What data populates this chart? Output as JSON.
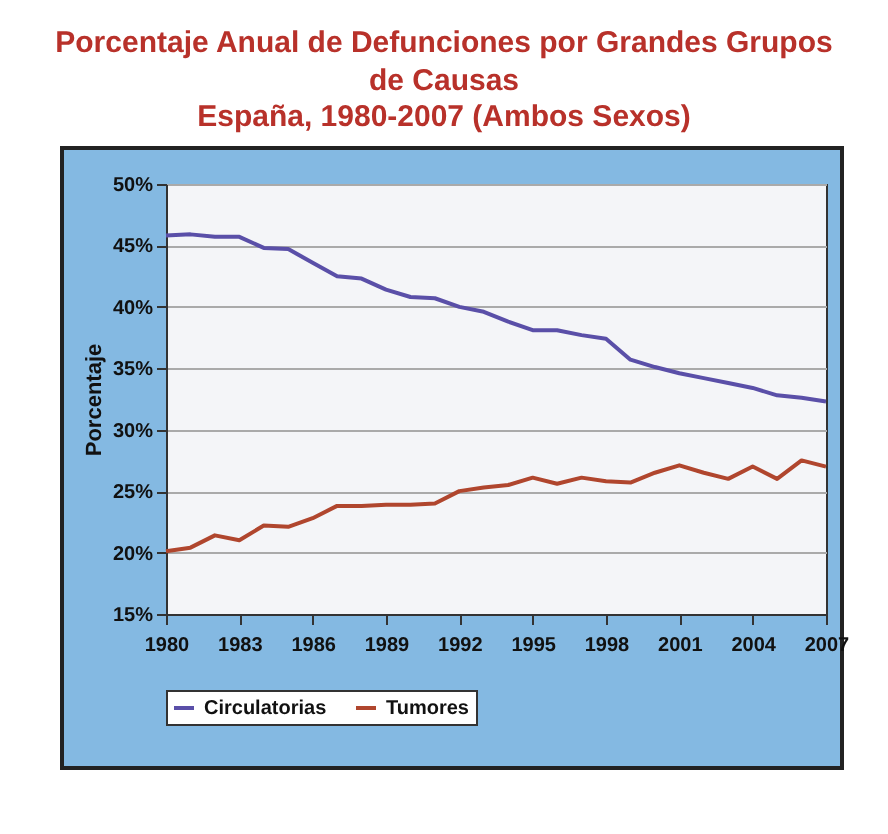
{
  "chart_data": {
    "type": "line",
    "title": "Porcentaje Anual de Defunciones por Grandes Grupos de Causas",
    "subtitle": "España, 1980-2007 (Ambos Sexos)",
    "ylabel": "Porcentaje",
    "x": [
      1980,
      1981,
      1982,
      1983,
      1984,
      1985,
      1986,
      1987,
      1988,
      1989,
      1990,
      1991,
      1992,
      1993,
      1994,
      1995,
      1996,
      1997,
      1998,
      1999,
      2000,
      2001,
      2002,
      2003,
      2004,
      2005,
      2006,
      2007
    ],
    "series": [
      {
        "name": "Circulatorias",
        "color": "#5a4fa8",
        "values": [
          45.8,
          45.9,
          45.7,
          45.7,
          44.8,
          44.7,
          43.6,
          42.5,
          42.3,
          41.4,
          40.8,
          40.7,
          40.0,
          39.6,
          38.8,
          38.1,
          38.1,
          37.7,
          37.4,
          35.7,
          35.1,
          34.6,
          34.2,
          33.8,
          33.4,
          32.8,
          32.6,
          32.3
        ]
      },
      {
        "name": "Tumores",
        "color": "#b0462e",
        "values": [
          20.1,
          20.4,
          21.4,
          21.0,
          22.2,
          22.1,
          22.8,
          23.8,
          23.8,
          23.9,
          23.9,
          24.0,
          25.0,
          25.3,
          25.5,
          26.1,
          25.6,
          26.1,
          25.8,
          25.7,
          26.5,
          27.1,
          26.5,
          26.0,
          27.0,
          26.0,
          27.5,
          27.0
        ]
      }
    ],
    "xlim": [
      1980,
      2007
    ],
    "xticks": [
      1980,
      1983,
      1986,
      1989,
      1992,
      1995,
      1998,
      2001,
      2004,
      2007
    ],
    "ylim": [
      15,
      50
    ],
    "yticks": [
      {
        "value": 15,
        "label": "15%"
      },
      {
        "value": 20,
        "label": "20%"
      },
      {
        "value": 25,
        "label": "25%"
      },
      {
        "value": 30,
        "label": "30%"
      },
      {
        "value": 35,
        "label": "35%"
      },
      {
        "value": 40,
        "label": "40%"
      },
      {
        "value": 45,
        "label": "45%"
      },
      {
        "value": 50,
        "label": "50%"
      }
    ],
    "grid": "y",
    "legend": "bottom",
    "marker": "none",
    "line_style": "solid"
  }
}
